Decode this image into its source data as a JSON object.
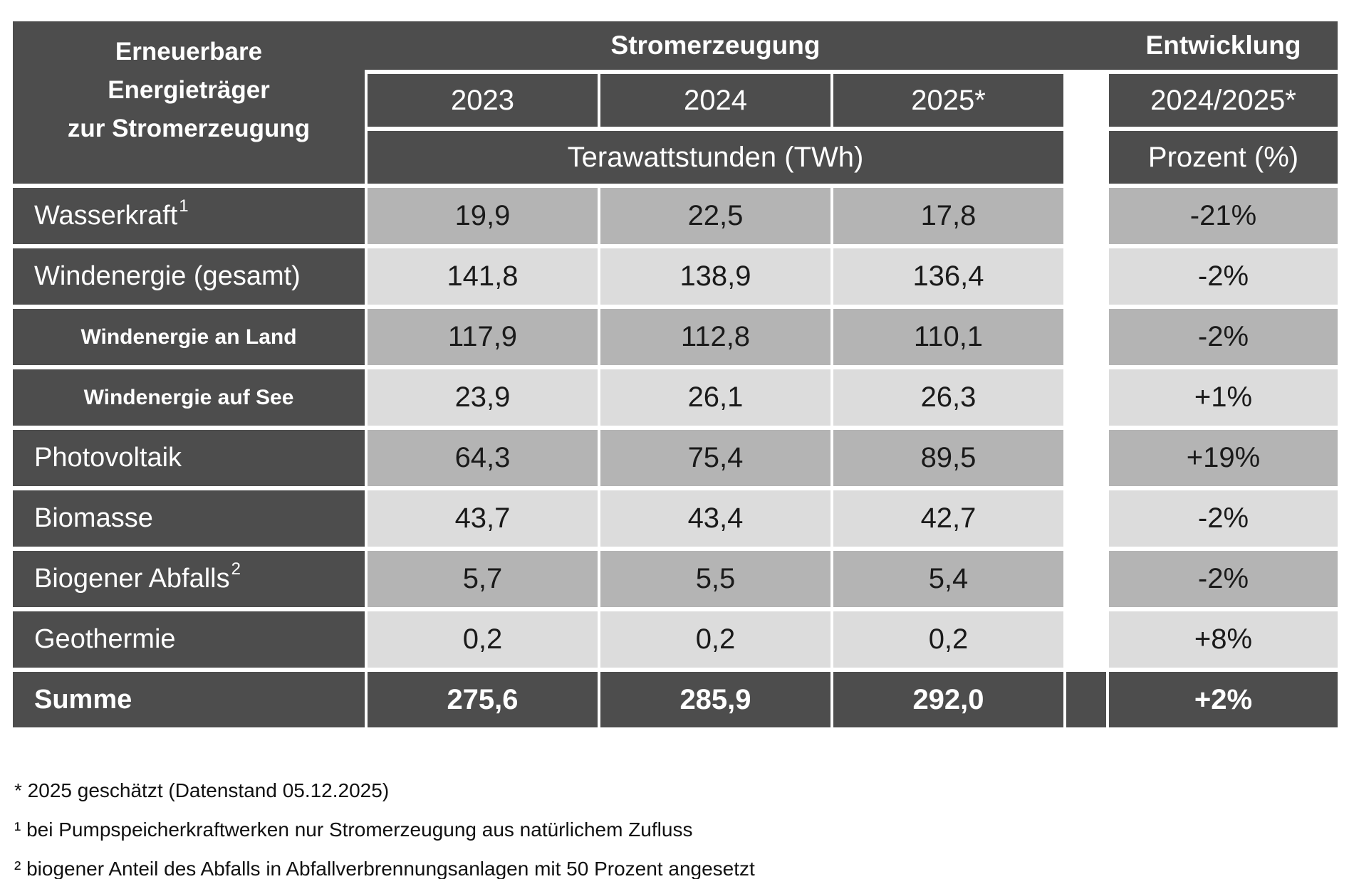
{
  "page_title": "Erneuerbare Energieträger zur Stromerzeugung",
  "colors": {
    "header_bg": "#4d4d4d",
    "row_medium": "#b4b4b4",
    "row_light": "#dcdcdc",
    "border_white": "#ffffff",
    "text_on_dark": "#ffffff",
    "text_on_gray": "#1a1a1a"
  },
  "table": {
    "corner": {
      "line1": "Erneuerbare",
      "line2": "Energieträger",
      "line3": "zur Stromerzeugung"
    },
    "group_headers": {
      "generation": "Stromerzeugung",
      "development": "Entwicklung"
    },
    "col_headers": {
      "y2023": "2023",
      "y2024": "2024",
      "y2025": "2025*",
      "dev": "2024/2025*"
    },
    "unit_headers": {
      "generation": "Terawattstunden (TWh)",
      "development": "Prozent (%)"
    },
    "rows": [
      {
        "label": "Wasserkraft",
        "sup": "1",
        "v2023": "19,9",
        "v2024": "22,5",
        "v2025": "17,8",
        "dev": "-21%"
      },
      {
        "label": "Windenergie (gesamt)",
        "v2023": "141,8",
        "v2024": "138,9",
        "v2025": "136,4",
        "dev": "-2%"
      },
      {
        "label": "Windenergie an Land",
        "v2023": "117,9",
        "v2024": "112,8",
        "v2025": "110,1",
        "dev": "-2%"
      },
      {
        "label": "Windenergie auf See",
        "v2023": "23,9",
        "v2024": "26,1",
        "v2025": "26,3",
        "dev": "+1%"
      },
      {
        "label": "Photovoltaik",
        "v2023": "64,3",
        "v2024": "75,4",
        "v2025": "89,5",
        "dev": "+19%"
      },
      {
        "label": "Biomasse",
        "v2023": "43,7",
        "v2024": "43,4",
        "v2025": "42,7",
        "dev": "-2%"
      },
      {
        "label": "Biogener Abfalls",
        "sup": "2",
        "v2023": "5,7",
        "v2024": "5,5",
        "v2025": "5,4",
        "dev": "-2%"
      },
      {
        "label": "Geothermie",
        "v2023": "0,2",
        "v2024": "0,2",
        "v2025": "0,2",
        "dev": "+8%"
      }
    ],
    "total": {
      "label": "Summe",
      "v2023": "275,6",
      "v2024": "285,9",
      "v2025": "292,0",
      "dev": "+2%"
    }
  },
  "footnotes": [
    "* 2025 geschätzt (Datenstand 05.12.2025)",
    "¹ bei Pumpspeicherkraftwerken nur Stromerzeugung aus natürlichem Zufluss",
    "² biogener Anteil des Abfalls in Abfallverbrennungsanlagen mit 50 Prozent angesetzt"
  ],
  "chart_data": {
    "type": "table",
    "title": "Erneuerbare Energieträger zur Stromerzeugung",
    "column_groups": [
      "Stromerzeugung",
      "Entwicklung"
    ],
    "columns": [
      "2023",
      "2024",
      "2025*",
      "2024/2025*"
    ],
    "units": {
      "Stromerzeugung": "Terawattstunden (TWh)",
      "Entwicklung": "Prozent (%)"
    },
    "rows": [
      {
        "category": "Wasserkraft",
        "footnote": "1",
        "values_twh": [
          19.9,
          22.5,
          17.8
        ],
        "change_2024_2025_pct": -21
      },
      {
        "category": "Windenergie (gesamt)",
        "values_twh": [
          141.8,
          138.9,
          136.4
        ],
        "change_2024_2025_pct": -2
      },
      {
        "category": "Windenergie an Land",
        "values_twh": [
          117.9,
          112.8,
          110.1
        ],
        "change_2024_2025_pct": -2
      },
      {
        "category": "Windenergie auf See",
        "values_twh": [
          23.9,
          26.1,
          26.3
        ],
        "change_2024_2025_pct": 1
      },
      {
        "category": "Photovoltaik",
        "values_twh": [
          64.3,
          75.4,
          89.5
        ],
        "change_2024_2025_pct": 19
      },
      {
        "category": "Biomasse",
        "values_twh": [
          43.7,
          43.4,
          42.7
        ],
        "change_2024_2025_pct": -2
      },
      {
        "category": "Biogener Abfalls",
        "footnote": "2",
        "values_twh": [
          5.7,
          5.5,
          5.4
        ],
        "change_2024_2025_pct": -2
      },
      {
        "category": "Geothermie",
        "values_twh": [
          0.2,
          0.2,
          0.2
        ],
        "change_2024_2025_pct": 8
      }
    ],
    "total": {
      "category": "Summe",
      "values_twh": [
        275.6,
        285.9,
        292.0
      ],
      "change_2024_2025_pct": 2
    }
  }
}
